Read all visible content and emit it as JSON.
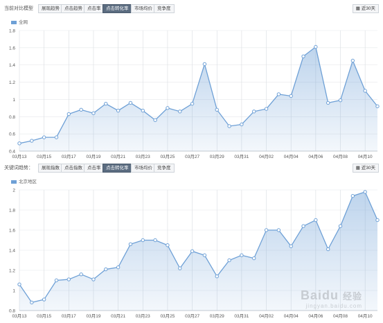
{
  "top": {
    "toolbar": {
      "label": "当前对比模型",
      "buttons": [
        "展现趋势",
        "点击趋势",
        "点击率",
        "点击转化率",
        "市场均价",
        "竞争度"
      ],
      "active_index": 3,
      "range": "近30天"
    }
  },
  "bottom": {
    "toolbar": {
      "label": "关键词趋势：",
      "buttons": [
        "展现指数",
        "点击指数",
        "点击率",
        "点击转化率",
        "市场均价",
        "竞争度"
      ],
      "active_index": 3,
      "range": "近30天"
    }
  },
  "watermark": {
    "main": "Bai",
    "paw": "du",
    "suffix": "经验",
    "domain": "jingyan.baidu.com"
  },
  "chart_data": [
    {
      "type": "area",
      "legend": "全网",
      "color": "#6ea0d6",
      "x": [
        "03月13",
        "03月14",
        "03月15",
        "03月16",
        "03月17",
        "03月18",
        "03月19",
        "03月20",
        "03月21",
        "03月22",
        "03月23",
        "03月24",
        "03月25",
        "03月26",
        "03月27",
        "03月28",
        "03月29",
        "03月30",
        "03月31",
        "04月01",
        "04月02",
        "04月03",
        "04月04",
        "04月05",
        "04月06",
        "04月07",
        "04月08",
        "04月09",
        "04月10",
        "04月11"
      ],
      "values": [
        0.49,
        0.52,
        0.56,
        0.56,
        0.83,
        0.88,
        0.84,
        0.95,
        0.87,
        0.96,
        0.87,
        0.76,
        0.9,
        0.86,
        0.95,
        1.41,
        0.88,
        0.69,
        0.71,
        0.86,
        0.89,
        1.06,
        1.04,
        1.5,
        1.61,
        0.96,
        0.99,
        1.45,
        1.1,
        0.92
      ],
      "xticks": [
        "03月13",
        "03月15",
        "03月17",
        "03月19",
        "03月21",
        "03月23",
        "03月25",
        "03月27",
        "03月29",
        "03月31",
        "04月02",
        "04月04",
        "04月06",
        "04月08",
        "04月10"
      ],
      "ylim": [
        0.4,
        1.8
      ],
      "yticks": [
        0.4,
        0.6,
        0.8,
        1,
        1.2,
        1.4,
        1.6,
        1.8
      ]
    },
    {
      "type": "area",
      "legend": "北京地区",
      "color": "#6ea0d6",
      "x": [
        "03月13",
        "03月14",
        "03月15",
        "03月16",
        "03月17",
        "03月18",
        "03月19",
        "03月20",
        "03月21",
        "03月22",
        "03月23",
        "03月24",
        "03月25",
        "03月26",
        "03月27",
        "03月28",
        "03月29",
        "03月30",
        "03月31",
        "04月01",
        "04月02",
        "04月03",
        "04月04",
        "04月05",
        "04月06",
        "04月07",
        "04月08",
        "04月09",
        "04月10",
        "04月11"
      ],
      "values": [
        1.06,
        0.88,
        0.91,
        1.1,
        1.11,
        1.16,
        1.11,
        1.21,
        1.23,
        1.46,
        1.5,
        1.5,
        1.45,
        1.22,
        1.39,
        1.35,
        1.14,
        1.3,
        1.35,
        1.32,
        1.6,
        1.6,
        1.44,
        1.64,
        1.7,
        1.41,
        1.64,
        1.94,
        1.98,
        1.7
      ],
      "xticks": [
        "03月13",
        "03月15",
        "03月17",
        "03月19",
        "03月21",
        "03月23",
        "03月25",
        "03月27",
        "03月29",
        "03月31",
        "04月02",
        "04月04",
        "04月06",
        "04月08",
        "04月10"
      ],
      "ylim": [
        0.8,
        2.0
      ],
      "yticks": [
        0.8,
        1,
        1.2,
        1.4,
        1.6,
        1.8,
        2
      ]
    }
  ]
}
